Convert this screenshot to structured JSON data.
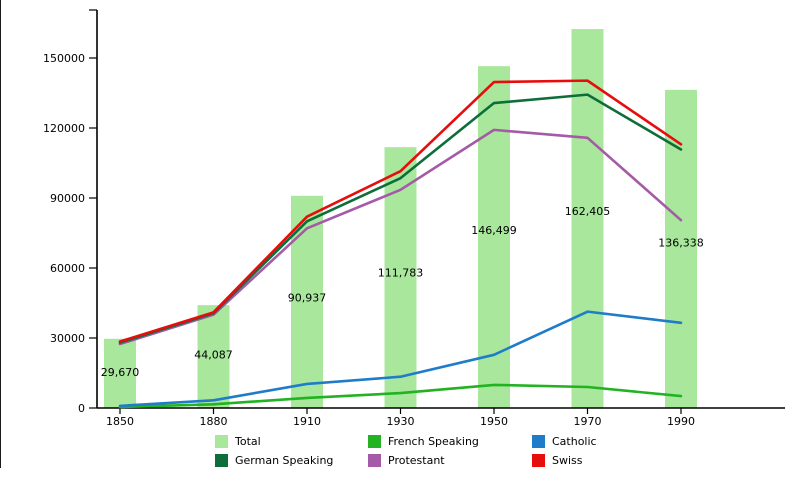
{
  "chart_data": {
    "type": "bar+line",
    "title": "",
    "categories": [
      "1850",
      "1880",
      "1910",
      "1930",
      "1950",
      "1970",
      "1990"
    ],
    "bars": {
      "name": "Total",
      "color": "#a9e79d",
      "values": [
        29670,
        44087,
        90937,
        111783,
        146499,
        162405,
        136338
      ],
      "labels": [
        "29,670",
        "44,087",
        "90,937",
        "111,783",
        "146,499",
        "162,405",
        "136,338"
      ]
    },
    "series": [
      {
        "name": "French Speaking",
        "color": "#22b222",
        "values": [
          400,
          1600,
          4300,
          6400,
          9900,
          9000,
          5100
        ]
      },
      {
        "name": "Catholic",
        "color": "#1f7cc8",
        "values": [
          900,
          3300,
          10300,
          13400,
          22800,
          41300,
          36500
        ]
      },
      {
        "name": "Protestant",
        "color": "#a55aa8",
        "values": [
          27400,
          40000,
          77000,
          93500,
          119200,
          115800,
          80500
        ]
      },
      {
        "name": "German Speaking",
        "color": "#0e6e3a",
        "values": [
          28000,
          40600,
          80000,
          98500,
          130700,
          134300,
          110800
        ]
      },
      {
        "name": "Swiss",
        "color": "#e60d0d",
        "values": [
          28500,
          41000,
          82000,
          101500,
          139700,
          140300,
          113000
        ]
      }
    ],
    "y_axis": {
      "ticks": [
        {
          "value": 0,
          "label": "0"
        },
        {
          "value": 30000,
          "label": "30000"
        },
        {
          "value": 60000,
          "label": "60000"
        },
        {
          "value": 90000,
          "label": "90000"
        },
        {
          "value": 120000,
          "label": "120000"
        },
        {
          "value": 150000,
          "label": "150000"
        }
      ],
      "max": 170000
    },
    "grid": "off",
    "legend_position": "bottom",
    "legend": {
      "items": [
        {
          "label": "Total",
          "color": "#a9e79d"
        },
        {
          "label": "French Speaking",
          "color": "#22b222"
        },
        {
          "label": "Catholic",
          "color": "#1f7cc8"
        },
        {
          "label": "German Speaking",
          "color": "#0e6e3a"
        },
        {
          "label": "Protestant",
          "color": "#a55aa8"
        },
        {
          "label": "Swiss",
          "color": "#e60d0d"
        }
      ]
    },
    "axis_color": "#000000",
    "text_color": "#000000"
  }
}
